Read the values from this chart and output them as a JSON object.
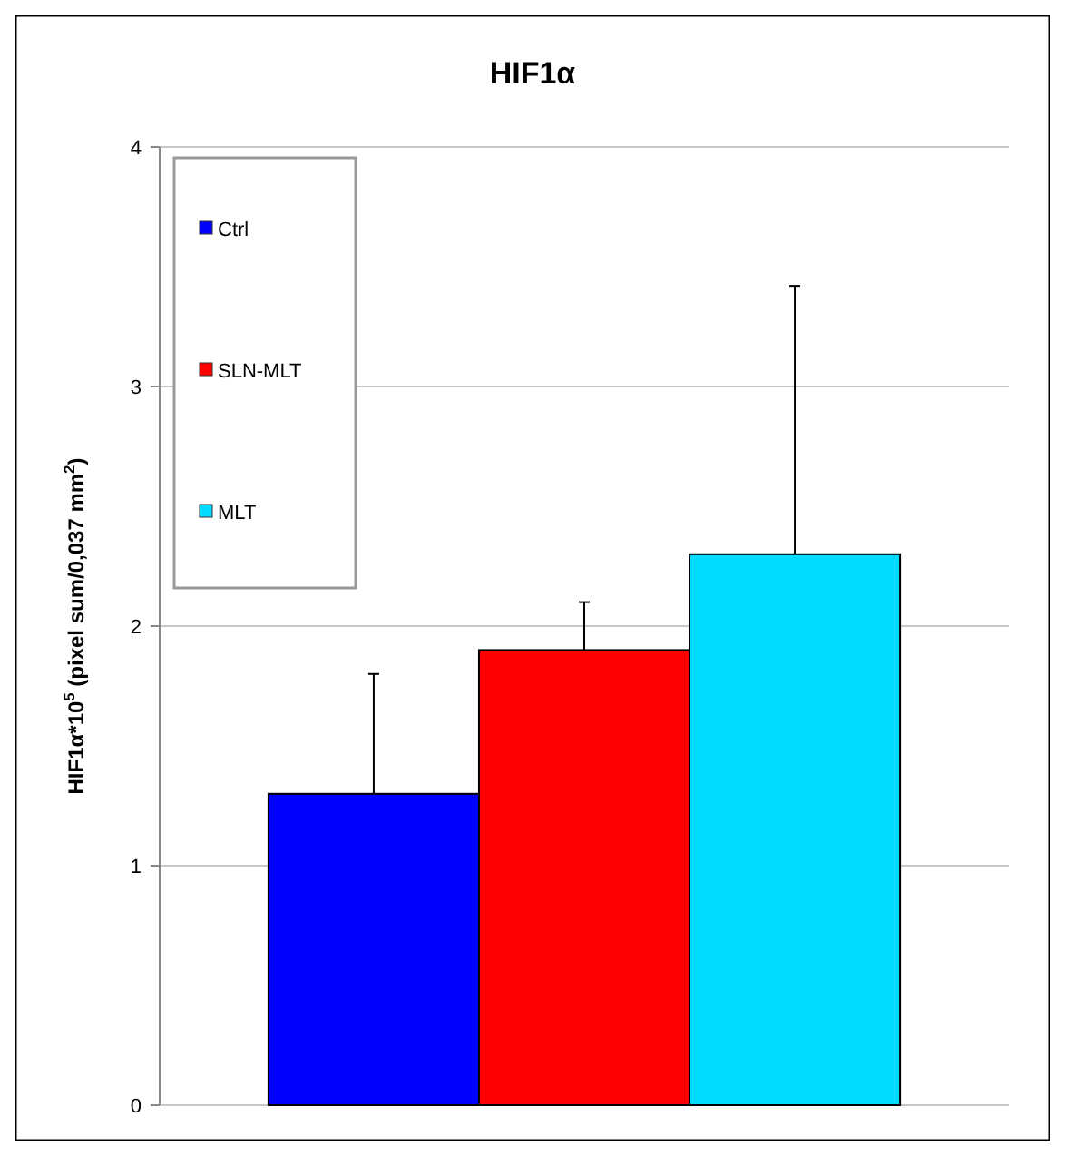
{
  "chart_data": {
    "type": "bar",
    "title": "HIF1α",
    "ylabel": "HIF1α*10$^{5}$ (pixel sum/0,037 mm$^{2}$)",
    "categories": [
      null
    ],
    "series": [
      {
        "name": "Ctrl",
        "color": "#0000ff",
        "values": [
          1.3
        ],
        "errors": [
          [
            1.3,
            1.8
          ]
        ]
      },
      {
        "name": "SLN-MLT",
        "color": "#ff0000",
        "values": [
          1.9
        ],
        "errors": [
          [
            1.9,
            2.1
          ]
        ]
      },
      {
        "name": "MLT",
        "color": "#00dcff",
        "values": [
          2.3
        ],
        "errors": [
          [
            2.3,
            3.42
          ]
        ]
      }
    ],
    "ylim": [
      0,
      4
    ],
    "yticks": [
      0,
      1,
      2,
      3,
      4
    ],
    "grid": "y",
    "legend": "top left"
  }
}
